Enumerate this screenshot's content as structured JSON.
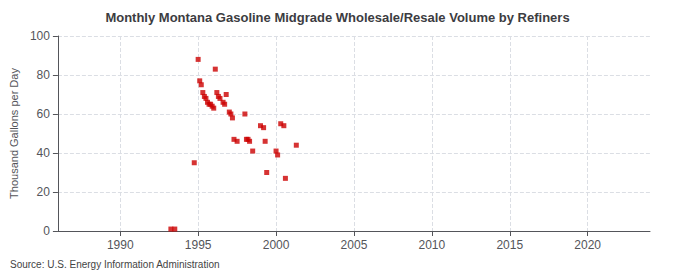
{
  "chart_data": {
    "type": "scatter",
    "title": "Monthly Montana Gasoline Midgrade Wholesale/Resale Volume by Refiners",
    "ylabel": "Thousand Gallons per Day",
    "annotation": "Source: U.S. Energy Information Administration",
    "x": [
      1993.25,
      1993.5,
      1994.75,
      1995.0,
      1995.1,
      1995.2,
      1995.3,
      1995.4,
      1995.5,
      1995.6,
      1995.7,
      1995.8,
      1995.9,
      1996.0,
      1996.1,
      1996.2,
      1996.3,
      1996.4,
      1996.6,
      1996.7,
      1996.8,
      1997.0,
      1997.1,
      1997.2,
      1997.3,
      1997.5,
      1998.0,
      1998.1,
      1998.2,
      1998.3,
      1998.5,
      1999.0,
      1999.2,
      1999.3,
      1999.4,
      2000.0,
      2000.1,
      2000.3,
      2000.5,
      2000.6,
      2001.3
    ],
    "values": [
      1,
      1,
      35,
      88,
      77,
      75,
      71,
      69,
      68,
      66,
      65,
      65,
      64,
      63,
      83,
      71,
      69,
      68,
      66,
      65,
      70,
      61,
      60,
      58,
      47,
      46,
      60,
      47,
      47,
      46,
      41,
      54,
      53,
      46,
      30,
      41,
      39,
      55,
      54,
      27,
      44
    ],
    "color": "#cc0000",
    "marker": "square",
    "xlim": [
      1986,
      2024
    ],
    "ylim": [
      0,
      100
    ],
    "xticks": [
      1990,
      1995,
      2000,
      2005,
      2010,
      2015,
      2020
    ],
    "yticks": [
      0,
      20,
      40,
      60,
      80,
      100
    ],
    "grid": true
  }
}
